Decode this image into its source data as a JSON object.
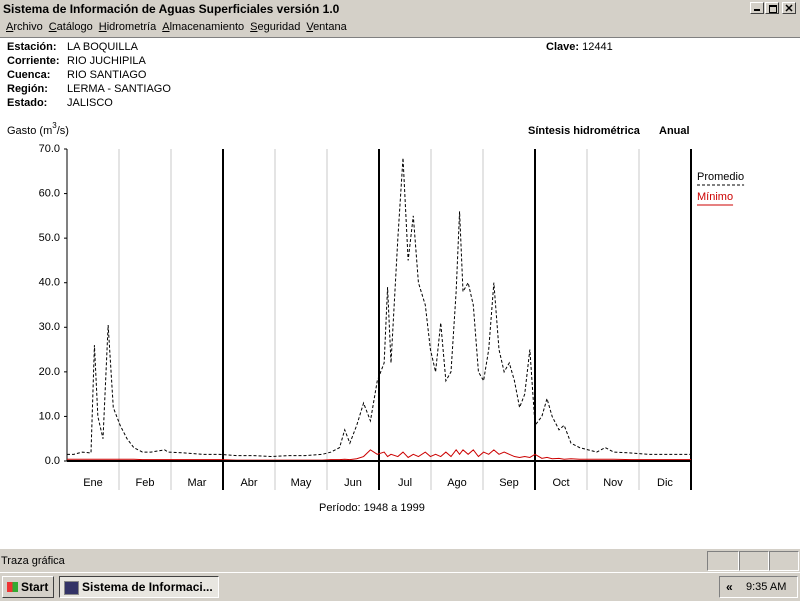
{
  "window": {
    "title": "Sistema de Información de Aguas Superficiales  versión 1.0"
  },
  "menu": [
    "Archivo",
    "Catálogo",
    "Hidrometría",
    "Almacenamiento",
    "Seguridad",
    "Ventana"
  ],
  "station": {
    "fields": [
      {
        "label": "Estación:",
        "value": "LA BOQUILLA"
      },
      {
        "label": "Corriente:",
        "value": "RIO JUCHIPILA"
      },
      {
        "label": "Cuenca:",
        "value": "RIO SANTIAGO"
      },
      {
        "label": "Región:",
        "value": "LERMA - SANTIAGO"
      },
      {
        "label": "Estado:",
        "value": "JALISCO"
      }
    ],
    "clave_label": "Clave:",
    "clave": "12441"
  },
  "chart_data": {
    "type": "line",
    "title": "Síntesis hidrométrica",
    "subtitle": "Anual",
    "y_label": [
      "Gasto (m",
      "3",
      "/s)"
    ],
    "footnote": "Período:  1948 a 1999",
    "categories": [
      "Ene",
      "Feb",
      "Mar",
      "Abr",
      "May",
      "Jun",
      "Jul",
      "Ago",
      "Sep",
      "Oct",
      "Nov",
      "Dic"
    ],
    "xlim": [
      1,
      365
    ],
    "x": [
      1,
      5,
      10,
      15,
      17,
      19,
      22,
      25,
      28,
      32,
      36,
      40,
      45,
      50,
      58,
      60,
      70,
      80,
      90,
      100,
      110,
      120,
      130,
      140,
      150,
      155,
      160,
      163,
      166,
      170,
      174,
      178,
      182,
      186,
      188,
      190,
      194,
      197,
      200,
      203,
      206,
      210,
      213,
      216,
      219,
      222,
      225,
      228,
      230,
      232,
      235,
      238,
      241,
      244,
      247,
      250,
      253,
      256,
      259,
      262,
      265,
      268,
      271,
      274,
      278,
      281,
      284,
      288,
      291,
      295,
      300,
      305,
      310,
      315,
      320,
      330,
      340,
      350,
      365
    ],
    "series": [
      {
        "name": "Promedio",
        "color": "#000000",
        "dashed": true,
        "values": [
          1.5,
          1.5,
          2,
          1.8,
          26,
          10,
          5,
          30.5,
          12,
          8,
          5,
          3,
          2,
          2,
          2.5,
          2,
          1.8,
          1.5,
          1.5,
          1.2,
          1.2,
          1,
          1.2,
          1.2,
          1.5,
          2,
          3,
          7,
          4,
          8,
          13,
          9,
          18,
          22,
          39,
          22,
          50,
          68,
          45,
          55,
          40,
          35,
          25,
          20,
          31,
          18,
          20,
          38,
          56,
          38,
          40,
          35,
          20,
          18,
          25,
          40,
          25,
          20,
          22,
          18,
          12,
          15,
          25,
          8,
          10,
          14,
          10,
          7,
          8,
          4,
          3,
          2.5,
          2,
          3,
          2,
          1.8,
          1.5,
          1.5,
          1.5
        ]
      },
      {
        "name": "Mínimo",
        "color": "#cc0000",
        "dashed": false,
        "values": [
          0.4,
          0.4,
          0.4,
          0.4,
          0.4,
          0.4,
          0.4,
          0.4,
          0.4,
          0.4,
          0.4,
          0.4,
          0.3,
          0.3,
          0.3,
          0.3,
          0.3,
          0.3,
          0.3,
          0.2,
          0.2,
          0.2,
          0.2,
          0.2,
          0.2,
          0.3,
          0.3,
          0.4,
          0.3,
          0.5,
          1,
          2.5,
          1.5,
          2,
          1,
          1.5,
          1,
          2,
          0.8,
          1.5,
          1,
          2,
          1,
          1.5,
          1,
          2,
          1,
          2.5,
          1.5,
          2.5,
          1.5,
          2.5,
          1,
          2,
          1.5,
          2.5,
          1.5,
          2,
          1.5,
          1,
          0.8,
          1,
          0.8,
          1.5,
          0.6,
          0.8,
          0.5,
          0.6,
          0.4,
          0.5,
          0.4,
          0.4,
          0.4,
          0.4,
          0.4,
          0.3,
          0.3,
          0.3,
          0.3
        ]
      }
    ],
    "ylim": [
      0,
      70
    ],
    "yticks": [
      {
        "value": 0,
        "label": "0.0"
      },
      {
        "value": 10,
        "label": "10.0"
      },
      {
        "value": 20,
        "label": "20.0"
      },
      {
        "value": 30,
        "label": "30.0"
      },
      {
        "value": 40,
        "label": "40.0"
      },
      {
        "value": 50,
        "label": "50.0"
      },
      {
        "value": 60,
        "label": "60.0"
      },
      {
        "value": 70,
        "label": "70.0"
      }
    ],
    "grid": true,
    "legend": "right"
  },
  "status_bar": {
    "text": "Traza gráfica"
  },
  "taskbar": {
    "start": "Start",
    "task": "Sistema de Informaci...",
    "tray_arrow": "«",
    "clock": "9:35 AM"
  }
}
